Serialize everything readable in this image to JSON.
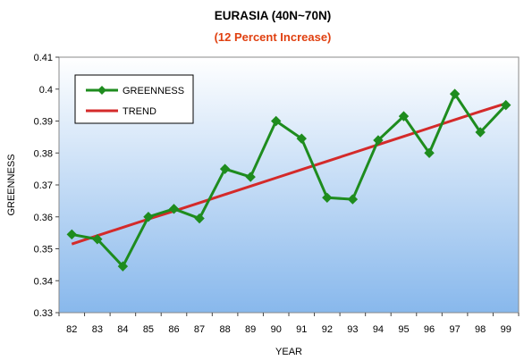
{
  "chart_data": {
    "type": "line",
    "title": "EURASIA (40N~70N)",
    "subtitle": "(12 Percent Increase)",
    "xlabel": "YEAR",
    "ylabel": "GREENNESS",
    "x": [
      "82",
      "83",
      "84",
      "85",
      "86",
      "87",
      "88",
      "89",
      "90",
      "91",
      "92",
      "93",
      "94",
      "95",
      "96",
      "97",
      "98",
      "99"
    ],
    "ylim": [
      0.33,
      0.41
    ],
    "yticks": [
      "0.33",
      "0.34",
      "0.35",
      "0.36",
      "0.37",
      "0.38",
      "0.39",
      "0.4",
      "0.41"
    ],
    "series": [
      {
        "name": "GREENNESS",
        "values": [
          0.3545,
          0.353,
          0.3445,
          0.36,
          0.3625,
          0.3595,
          0.375,
          0.3725,
          0.39,
          0.3845,
          0.366,
          0.3655,
          0.384,
          0.3915,
          0.38,
          0.3985,
          0.3865,
          0.395
        ],
        "marker": "diamond"
      },
      {
        "name": "TREND",
        "values": [
          0.3515,
          0.3541,
          0.3567,
          0.3593,
          0.3618,
          0.3644,
          0.367,
          0.3696,
          0.3722,
          0.3748,
          0.3774,
          0.38,
          0.3826,
          0.3852,
          0.3878,
          0.3904,
          0.393,
          0.3955
        ]
      }
    ],
    "legend_position": "top-left",
    "grid": false,
    "colors": {
      "greenness": "#1e8c1e",
      "trend": "#d42a2a",
      "subtitle": "#e04010",
      "plot_top": "#ffffff",
      "plot_bottom": "#88b8ec"
    }
  }
}
